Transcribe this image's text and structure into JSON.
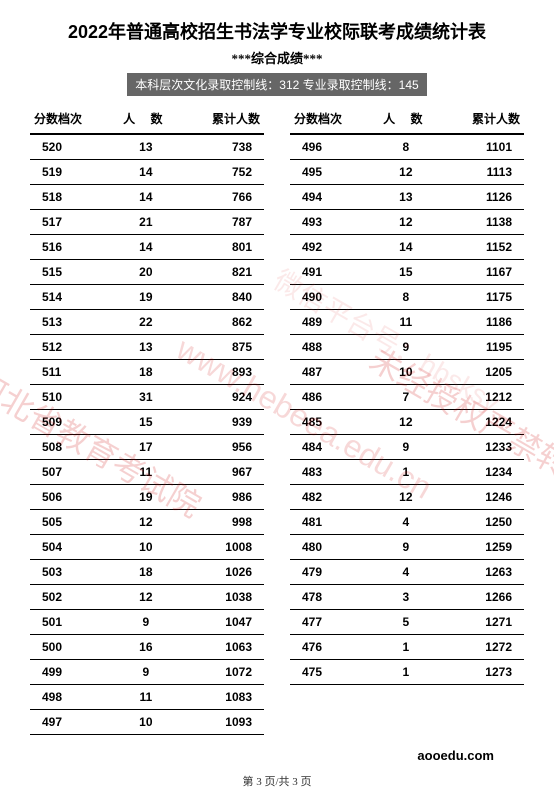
{
  "title": "2022年普通高校招生书法学专业校际联考成绩统计表",
  "subtitle": "***综合成绩***",
  "banner": "本科层次文化录取控制线：312 专业录取控制线：145",
  "headers": {
    "h1": "分数档次",
    "h2": "人 数",
    "h3": "累计人数"
  },
  "left": [
    {
      "a": "520",
      "b": "13",
      "c": "738"
    },
    {
      "a": "519",
      "b": "14",
      "c": "752"
    },
    {
      "a": "518",
      "b": "14",
      "c": "766"
    },
    {
      "a": "517",
      "b": "21",
      "c": "787"
    },
    {
      "a": "516",
      "b": "14",
      "c": "801"
    },
    {
      "a": "515",
      "b": "20",
      "c": "821"
    },
    {
      "a": "514",
      "b": "19",
      "c": "840"
    },
    {
      "a": "513",
      "b": "22",
      "c": "862"
    },
    {
      "a": "512",
      "b": "13",
      "c": "875"
    },
    {
      "a": "511",
      "b": "18",
      "c": "893"
    },
    {
      "a": "510",
      "b": "31",
      "c": "924"
    },
    {
      "a": "509",
      "b": "15",
      "c": "939"
    },
    {
      "a": "508",
      "b": "17",
      "c": "956"
    },
    {
      "a": "507",
      "b": "11",
      "c": "967"
    },
    {
      "a": "506",
      "b": "19",
      "c": "986"
    },
    {
      "a": "505",
      "b": "12",
      "c": "998"
    },
    {
      "a": "504",
      "b": "10",
      "c": "1008"
    },
    {
      "a": "503",
      "b": "18",
      "c": "1026"
    },
    {
      "a": "502",
      "b": "12",
      "c": "1038"
    },
    {
      "a": "501",
      "b": "9",
      "c": "1047"
    },
    {
      "a": "500",
      "b": "16",
      "c": "1063"
    },
    {
      "a": "499",
      "b": "9",
      "c": "1072"
    },
    {
      "a": "498",
      "b": "11",
      "c": "1083"
    },
    {
      "a": "497",
      "b": "10",
      "c": "1093"
    }
  ],
  "right": [
    {
      "a": "496",
      "b": "8",
      "c": "1101"
    },
    {
      "a": "495",
      "b": "12",
      "c": "1113"
    },
    {
      "a": "494",
      "b": "13",
      "c": "1126"
    },
    {
      "a": "493",
      "b": "12",
      "c": "1138"
    },
    {
      "a": "492",
      "b": "14",
      "c": "1152"
    },
    {
      "a": "491",
      "b": "15",
      "c": "1167"
    },
    {
      "a": "490",
      "b": "8",
      "c": "1175"
    },
    {
      "a": "489",
      "b": "11",
      "c": "1186"
    },
    {
      "a": "488",
      "b": "9",
      "c": "1195"
    },
    {
      "a": "487",
      "b": "10",
      "c": "1205"
    },
    {
      "a": "486",
      "b": "7",
      "c": "1212"
    },
    {
      "a": "485",
      "b": "12",
      "c": "1224"
    },
    {
      "a": "484",
      "b": "9",
      "c": "1233"
    },
    {
      "a": "483",
      "b": "1",
      "c": "1234"
    },
    {
      "a": "482",
      "b": "12",
      "c": "1246"
    },
    {
      "a": "481",
      "b": "4",
      "c": "1250"
    },
    {
      "a": "480",
      "b": "9",
      "c": "1259"
    },
    {
      "a": "479",
      "b": "4",
      "c": "1263"
    },
    {
      "a": "478",
      "b": "3",
      "c": "1266"
    },
    {
      "a": "477",
      "b": "5",
      "c": "1271"
    },
    {
      "a": "476",
      "b": "1",
      "c": "1272"
    },
    {
      "a": "475",
      "b": "1",
      "c": "1273"
    }
  ],
  "brand": "aooedu.com",
  "footer": "第 3 页/共 3 页",
  "watermarks": {
    "w1": "河北省教育考试院",
    "w2": "www.hebeea.edu.cn",
    "w3": "未经授权严禁转载及使用",
    "w4": "微信平台号：hbsksy"
  }
}
